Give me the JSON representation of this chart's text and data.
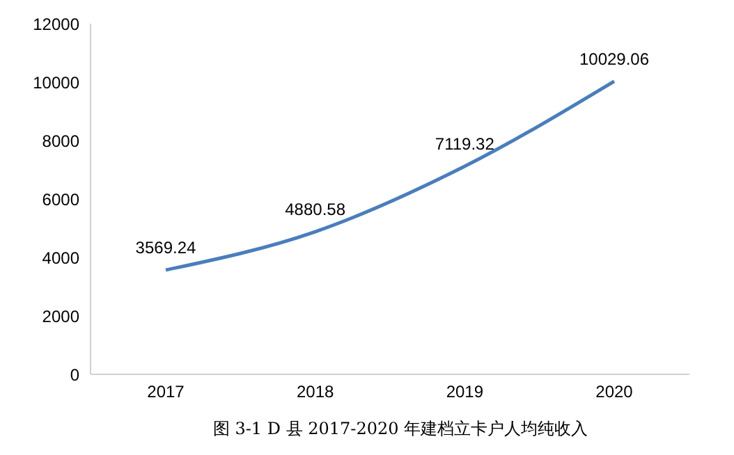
{
  "chart_data": {
    "type": "line",
    "title": "图 3-1  D 县 2017-2020 年建档立卡户人均纯收入",
    "categories": [
      "2017",
      "2018",
      "2019",
      "2020"
    ],
    "values": [
      3569.24,
      4880.58,
      7119.32,
      10029.06
    ],
    "color": "#4a7ebb",
    "ylim": [
      0,
      12000
    ],
    "yticks": [
      0,
      2000,
      4000,
      6000,
      8000,
      10000,
      12000
    ],
    "grid": false,
    "data_labels": true,
    "marker": "none"
  }
}
